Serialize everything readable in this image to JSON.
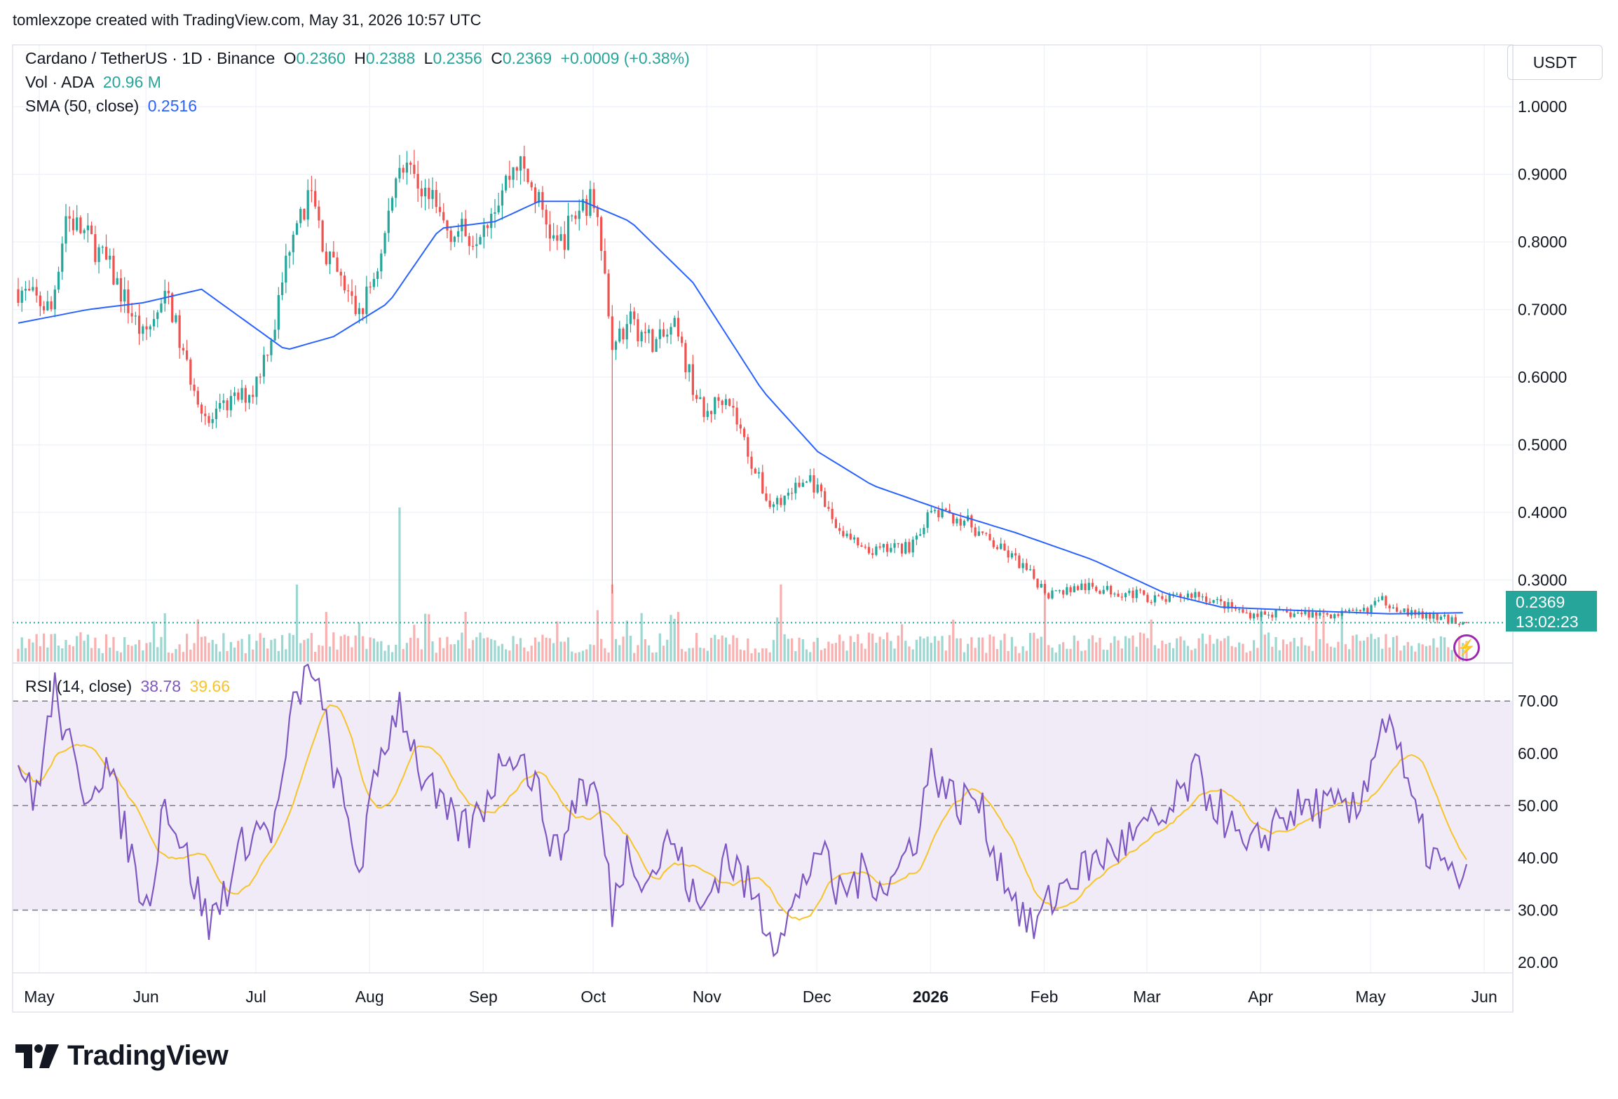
{
  "header": {
    "credit": "tomlexzope created with TradingView.com, May 31, 2026 10:57 UTC"
  },
  "legend": {
    "symbol": "Cardano / TetherUS · 1D · Binance",
    "o_label": "O",
    "o_value": "0.2360",
    "h_label": "H",
    "h_value": "0.2388",
    "l_label": "L",
    "l_value": "0.2356",
    "c_label": "C",
    "c_value": "0.2369",
    "change": "+0.0009 (+0.38%)",
    "vol_label": "Vol · ADA",
    "vol_value": "20.96 M",
    "sma_label": "SMA (50, close)",
    "sma_value": "0.2516",
    "rsi_label": "RSI (14, close)",
    "rsi_value": "38.78",
    "rsi_ma_value": "39.66"
  },
  "price_scale": {
    "currency": "USDT",
    "current_price": "0.2369",
    "countdown": "13:02:23",
    "ticks": [
      "1.0000",
      "0.9000",
      "0.8000",
      "0.7000",
      "0.6000",
      "0.5000",
      "0.4000",
      "0.3000"
    ]
  },
  "rsi_scale": {
    "ticks": [
      "70.00",
      "60.00",
      "50.00",
      "40.00",
      "30.00",
      "20.00"
    ]
  },
  "time_axis": {
    "labels": [
      "May",
      "Jun",
      "Jul",
      "Aug",
      "Sep",
      "Oct",
      "Nov",
      "Dec",
      "2026",
      "Feb",
      "Mar",
      "Apr",
      "May",
      "Jun"
    ]
  },
  "branding": {
    "logo_text": "TradingView"
  },
  "colors": {
    "up": "#26a69a",
    "down": "#ef5350",
    "sma": "#2962ff",
    "rsi": "#7e57c2",
    "rsi_ma": "#f7c42a",
    "rsi_band": "#ede7f6"
  },
  "chart_data": {
    "type": "candlestick",
    "title": "Cardano / TetherUS · 1D · Binance",
    "period": "2025-05-01 to 2026-05-31",
    "price_range": [
      0.2,
      1.05
    ],
    "price_anchors": [
      {
        "date": "2025-05-01",
        "close": 0.73
      },
      {
        "date": "2025-05-10",
        "close": 0.7
      },
      {
        "date": "2025-05-14",
        "close": 0.84
      },
      {
        "date": "2025-05-21",
        "close": 0.8
      },
      {
        "date": "2025-05-26",
        "close": 0.76
      },
      {
        "date": "2025-06-04",
        "close": 0.66
      },
      {
        "date": "2025-06-11",
        "close": 0.72
      },
      {
        "date": "2025-06-15",
        "close": 0.63
      },
      {
        "date": "2025-06-22",
        "close": 0.53
      },
      {
        "date": "2025-06-27",
        "close": 0.56
      },
      {
        "date": "2025-07-04",
        "close": 0.58
      },
      {
        "date": "2025-07-10",
        "close": 0.68
      },
      {
        "date": "2025-07-15",
        "close": 0.83
      },
      {
        "date": "2025-07-20",
        "close": 0.87
      },
      {
        "date": "2025-07-24",
        "close": 0.78
      },
      {
        "date": "2025-08-02",
        "close": 0.69
      },
      {
        "date": "2025-08-08",
        "close": 0.78
      },
      {
        "date": "2025-08-13",
        "close": 0.93
      },
      {
        "date": "2025-08-19",
        "close": 0.88
      },
      {
        "date": "2025-08-26",
        "close": 0.82
      },
      {
        "date": "2025-09-02",
        "close": 0.81
      },
      {
        "date": "2025-09-08",
        "close": 0.86
      },
      {
        "date": "2025-09-14",
        "close": 0.92
      },
      {
        "date": "2025-09-19",
        "close": 0.87
      },
      {
        "date": "2025-09-25",
        "close": 0.79
      },
      {
        "date": "2025-10-02",
        "close": 0.86
      },
      {
        "date": "2025-10-06",
        "close": 0.86
      },
      {
        "date": "2025-10-10",
        "close": 0.64
      },
      {
        "date": "2025-10-15",
        "close": 0.68
      },
      {
        "date": "2025-10-22",
        "close": 0.65
      },
      {
        "date": "2025-10-27",
        "close": 0.67
      },
      {
        "date": "2025-11-04",
        "close": 0.54
      },
      {
        "date": "2025-11-10",
        "close": 0.58
      },
      {
        "date": "2025-11-18",
        "close": 0.46
      },
      {
        "date": "2025-11-22",
        "close": 0.41
      },
      {
        "date": "2025-11-30",
        "close": 0.44
      },
      {
        "date": "2025-12-03",
        "close": 0.45
      },
      {
        "date": "2025-12-10",
        "close": 0.38
      },
      {
        "date": "2025-12-18",
        "close": 0.34
      },
      {
        "date": "2025-12-30",
        "close": 0.35
      },
      {
        "date": "2026-01-05",
        "close": 0.4
      },
      {
        "date": "2026-01-14",
        "close": 0.39
      },
      {
        "date": "2026-01-20",
        "close": 0.36
      },
      {
        "date": "2026-01-28",
        "close": 0.33
      },
      {
        "date": "2026-02-06",
        "close": 0.28
      },
      {
        "date": "2026-02-15",
        "close": 0.29
      },
      {
        "date": "2026-03-01",
        "close": 0.28
      },
      {
        "date": "2026-03-09",
        "close": 0.27
      },
      {
        "date": "2026-03-18",
        "close": 0.28
      },
      {
        "date": "2026-04-01",
        "close": 0.25
      },
      {
        "date": "2026-04-15",
        "close": 0.25
      },
      {
        "date": "2026-05-01",
        "close": 0.25
      },
      {
        "date": "2026-05-08",
        "close": 0.27
      },
      {
        "date": "2026-05-16",
        "close": 0.25
      },
      {
        "date": "2026-05-31",
        "close": 0.2369
      }
    ],
    "sma_50_anchors": [
      {
        "date": "2025-05-01",
        "value": 0.68
      },
      {
        "date": "2025-05-20",
        "value": 0.7
      },
      {
        "date": "2025-06-04",
        "value": 0.71
      },
      {
        "date": "2025-06-20",
        "value": 0.73
      },
      {
        "date": "2025-07-13",
        "value": 0.64
      },
      {
        "date": "2025-07-26",
        "value": 0.66
      },
      {
        "date": "2025-08-10",
        "value": 0.71
      },
      {
        "date": "2025-08-24",
        "value": 0.82
      },
      {
        "date": "2025-09-08",
        "value": 0.83
      },
      {
        "date": "2025-09-20",
        "value": 0.86
      },
      {
        "date": "2025-10-02",
        "value": 0.86
      },
      {
        "date": "2025-10-15",
        "value": 0.83
      },
      {
        "date": "2025-11-01",
        "value": 0.74
      },
      {
        "date": "2025-11-20",
        "value": 0.58
      },
      {
        "date": "2025-12-05",
        "value": 0.49
      },
      {
        "date": "2025-12-20",
        "value": 0.44
      },
      {
        "date": "2026-01-10",
        "value": 0.4
      },
      {
        "date": "2026-01-28",
        "value": 0.37
      },
      {
        "date": "2026-02-18",
        "value": 0.33
      },
      {
        "date": "2026-03-10",
        "value": 0.28
      },
      {
        "date": "2026-03-25",
        "value": 0.26
      },
      {
        "date": "2026-04-15",
        "value": 0.255
      },
      {
        "date": "2026-05-10",
        "value": 0.25
      },
      {
        "date": "2026-05-31",
        "value": 0.2516
      }
    ],
    "volume_spikes": [
      {
        "date": "2025-07-16",
        "value": "high"
      },
      {
        "date": "2025-08-13",
        "value": "highest"
      },
      {
        "date": "2025-10-10",
        "value": "high"
      },
      {
        "date": "2025-11-25",
        "value": "high"
      },
      {
        "date": "2026-02-05",
        "value": "high"
      }
    ],
    "rsi_range": [
      18,
      77
    ],
    "rsi_levels": {
      "upper": 70,
      "middle": 50,
      "lower": 30
    },
    "rsi_anchors": [
      {
        "date": "2025-05-01",
        "rsi": 60
      },
      {
        "date": "2025-05-05",
        "rsi": 50
      },
      {
        "date": "2025-05-11",
        "rsi": 72
      },
      {
        "date": "2025-05-18",
        "rsi": 52
      },
      {
        "date": "2025-05-25",
        "rsi": 58
      },
      {
        "date": "2025-06-05",
        "rsi": 30
      },
      {
        "date": "2025-06-10",
        "rsi": 52
      },
      {
        "date": "2025-06-22",
        "rsi": 27
      },
      {
        "date": "2025-06-27",
        "rsi": 35
      },
      {
        "date": "2025-07-03",
        "rsi": 45
      },
      {
        "date": "2025-07-10",
        "rsi": 46
      },
      {
        "date": "2025-07-15",
        "rsi": 68
      },
      {
        "date": "2025-07-20",
        "rsi": 78
      },
      {
        "date": "2025-07-27",
        "rsi": 54
      },
      {
        "date": "2025-08-02",
        "rsi": 38
      },
      {
        "date": "2025-08-08",
        "rsi": 60
      },
      {
        "date": "2025-08-13",
        "rsi": 70
      },
      {
        "date": "2025-08-19",
        "rsi": 56
      },
      {
        "date": "2025-08-25",
        "rsi": 48
      },
      {
        "date": "2025-09-01",
        "rsi": 45
      },
      {
        "date": "2025-09-06",
        "rsi": 52
      },
      {
        "date": "2025-09-12",
        "rsi": 62
      },
      {
        "date": "2025-09-18",
        "rsi": 56
      },
      {
        "date": "2025-09-25",
        "rsi": 40
      },
      {
        "date": "2025-10-01",
        "rsi": 54
      },
      {
        "date": "2025-10-06",
        "rsi": 52
      },
      {
        "date": "2025-10-10",
        "rsi": 30
      },
      {
        "date": "2025-10-14",
        "rsi": 42
      },
      {
        "date": "2025-10-20",
        "rsi": 36
      },
      {
        "date": "2025-10-26",
        "rsi": 44
      },
      {
        "date": "2025-11-03",
        "rsi": 29
      },
      {
        "date": "2025-11-10",
        "rsi": 41
      },
      {
        "date": "2025-11-18",
        "rsi": 32
      },
      {
        "date": "2025-11-23",
        "rsi": 25
      },
      {
        "date": "2025-11-30",
        "rsi": 32
      },
      {
        "date": "2025-12-05",
        "rsi": 43
      },
      {
        "date": "2025-12-10",
        "rsi": 33
      },
      {
        "date": "2025-12-18",
        "rsi": 37
      },
      {
        "date": "2025-12-25",
        "rsi": 35
      },
      {
        "date": "2026-01-01",
        "rsi": 45
      },
      {
        "date": "2026-01-05",
        "rsi": 58
      },
      {
        "date": "2026-01-12",
        "rsi": 50
      },
      {
        "date": "2026-01-17",
        "rsi": 52
      },
      {
        "date": "2026-01-23",
        "rsi": 40
      },
      {
        "date": "2026-02-01",
        "rsi": 26
      },
      {
        "date": "2026-02-06",
        "rsi": 31
      },
      {
        "date": "2026-02-10",
        "rsi": 35
      },
      {
        "date": "2026-02-20",
        "rsi": 40
      },
      {
        "date": "2026-03-01",
        "rsi": 44
      },
      {
        "date": "2026-03-10",
        "rsi": 47
      },
      {
        "date": "2026-03-18",
        "rsi": 56
      },
      {
        "date": "2026-03-26",
        "rsi": 48
      },
      {
        "date": "2026-04-01",
        "rsi": 40
      },
      {
        "date": "2026-04-10",
        "rsi": 48
      },
      {
        "date": "2026-04-20",
        "rsi": 50
      },
      {
        "date": "2026-05-01",
        "rsi": 48
      },
      {
        "date": "2026-05-06",
        "rsi": 62
      },
      {
        "date": "2026-05-10",
        "rsi": 68
      },
      {
        "date": "2026-05-15",
        "rsi": 52
      },
      {
        "date": "2026-05-20",
        "rsi": 42
      },
      {
        "date": "2026-05-28",
        "rsi": 35
      },
      {
        "date": "2026-05-31",
        "rsi": 38.78
      }
    ],
    "rsi_ma_last": 39.66
  }
}
